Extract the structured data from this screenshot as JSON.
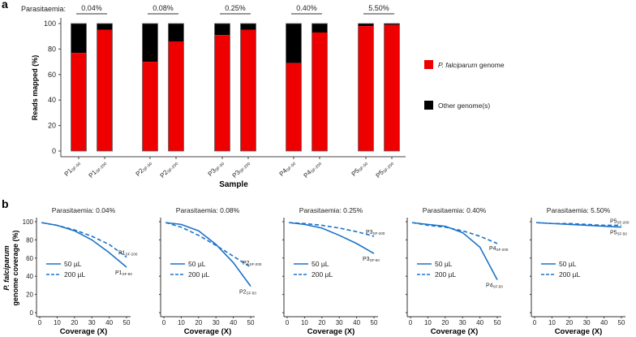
{
  "colors": {
    "pf": "#ee0000",
    "other": "#000000",
    "line": "#1a73c8"
  },
  "chart_data": [
    {
      "panel": "a",
      "type": "bar",
      "stacked": true,
      "parasitaemia_label": "Parasitaemia:",
      "groups": [
        {
          "parasitaemia": "0.04%",
          "samples": [
            {
              "name": "P1",
              "sub": "SF-50",
              "pf": 77
            },
            {
              "name": "P1",
              "sub": "SF-200",
              "pf": 95
            }
          ]
        },
        {
          "parasitaemia": "0.08%",
          "samples": [
            {
              "name": "P2",
              "sub": "SF-50",
              "pf": 70
            },
            {
              "name": "P2",
              "sub": "SF-200",
              "pf": 86
            }
          ]
        },
        {
          "parasitaemia": "0.25%",
          "samples": [
            {
              "name": "P3",
              "sub": "SF-50",
              "pf": 91
            },
            {
              "name": "P3",
              "sub": "SF-200",
              "pf": 95
            }
          ]
        },
        {
          "parasitaemia": "0.40%",
          "samples": [
            {
              "name": "P4",
              "sub": "SF-50",
              "pf": 69
            },
            {
              "name": "P4",
              "sub": "SF-200",
              "pf": 93
            }
          ]
        },
        {
          "parasitaemia": "5.50%",
          "samples": [
            {
              "name": "P5",
              "sub": "SF-50",
              "pf": 98
            },
            {
              "name": "P5",
              "sub": "SF-200",
              "pf": 99
            }
          ]
        }
      ],
      "xlabel": "Sample",
      "ylabel": "Reads mapped (%)",
      "ylim": [
        0,
        100
      ],
      "yticks": [
        0,
        20,
        40,
        60,
        80,
        100
      ],
      "legend": [
        {
          "label_italic": "P. falciparum",
          "label": " genome",
          "color": "pf"
        },
        {
          "label_italic": "",
          "label": "Other genome(s)",
          "color": "other"
        }
      ],
      "legend_position": "right"
    },
    {
      "panel": "b",
      "type": "line",
      "xlabel": "Coverage (X)",
      "ylabel_italic": "P. falciparum",
      "ylabel": "genome coverage (%)",
      "xticks": [
        0,
        10,
        20,
        30,
        40,
        50
      ],
      "yticks": [
        0,
        20,
        40,
        60,
        80,
        100
      ],
      "xlim": [
        0,
        50
      ],
      "ylim": [
        0,
        100
      ],
      "legend": [
        "50 µL",
        "200 µL"
      ],
      "x": [
        1,
        10,
        20,
        30,
        40,
        50
      ],
      "subplots": [
        {
          "title": "Parasitaemia: 0.04%",
          "sample": "P1",
          "sf50": [
            99,
            96,
            90,
            80,
            66,
            50
          ],
          "sf200": [
            99,
            96,
            91,
            84,
            75,
            61
          ]
        },
        {
          "title": "Parasitaemia: 0.08%",
          "sample": "P2",
          "sf50": [
            99,
            97,
            90,
            75,
            55,
            29
          ],
          "sf200": [
            99,
            94,
            85,
            74,
            62,
            50
          ]
        },
        {
          "title": "Parasitaemia: 0.25%",
          "sample": "P3",
          "sf50": [
            99,
            97,
            93,
            85,
            76,
            65
          ],
          "sf200": [
            99,
            98,
            96,
            93,
            89,
            84
          ]
        },
        {
          "title": "Parasitaemia: 0.40%",
          "sample": "P4",
          "sf50": [
            99,
            97,
            95,
            88,
            72,
            36
          ],
          "sf200": [
            99,
            96,
            94,
            90,
            84,
            76
          ]
        },
        {
          "title": "Parasitaemia: 5.50%",
          "sample": "P5",
          "sf50": [
            99,
            98,
            97,
            96,
            95,
            94
          ],
          "sf200": [
            99,
            98,
            98,
            97,
            96,
            96
          ]
        }
      ],
      "sub_labels": [
        "SF-50",
        "SF-200"
      ]
    }
  ],
  "panel_labels": [
    "a",
    "b"
  ]
}
